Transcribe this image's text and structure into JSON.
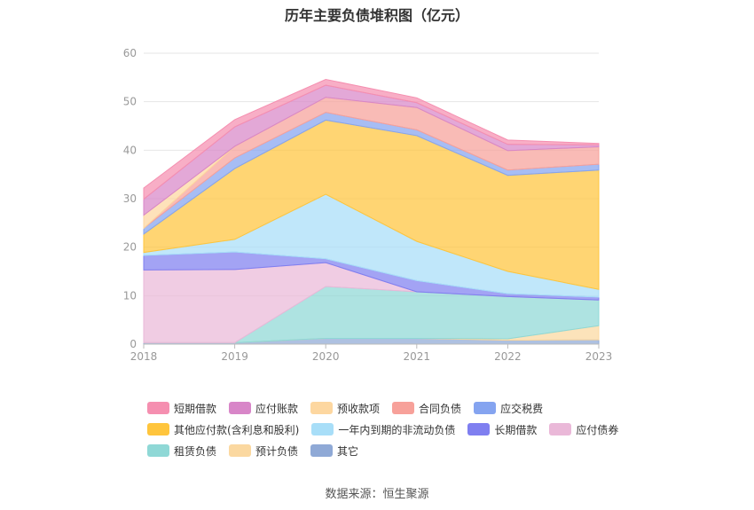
{
  "chart_data": {
    "type": "area",
    "stacked": true,
    "title": "历年主要负债堆积图（亿元）",
    "categories": [
      "2018",
      "2019",
      "2020",
      "2021",
      "2022",
      "2023"
    ],
    "ylim": [
      0,
      60
    ],
    "yticks": [
      0,
      10,
      20,
      30,
      40,
      50,
      60
    ],
    "grid": true,
    "legend_position": "bottom",
    "series": [
      {
        "name": "其它",
        "color": "#8fa9d6",
        "values": [
          0.3,
          0.3,
          1.2,
          1.2,
          0.8,
          0.9
        ]
      },
      {
        "name": "预计负债",
        "color": "#fbd8a0",
        "values": [
          0,
          0,
          0,
          0,
          0.3,
          2.9
        ]
      },
      {
        "name": "租赁负债",
        "color": "#8fd8d6",
        "values": [
          0,
          0,
          10.7,
          9.6,
          8.7,
          5.3
        ]
      },
      {
        "name": "应付债券",
        "color": "#eab8d8",
        "values": [
          15.0,
          15.1,
          4.9,
          0,
          0,
          0
        ]
      },
      {
        "name": "长期借款",
        "color": "#7f7ff0",
        "values": [
          3.0,
          3.6,
          0.8,
          2.3,
          0.6,
          0.6
        ]
      },
      {
        "name": "一年内到期的非流动负债",
        "color": "#a8def8",
        "values": [
          0.6,
          2.6,
          13.3,
          8.1,
          4.6,
          1.6
        ]
      },
      {
        "name": "其他应付款(含利息和股利)",
        "color": "#ffc53d",
        "values": [
          3.8,
          14.6,
          15.3,
          21.8,
          19.8,
          24.6
        ]
      },
      {
        "name": "应交税费",
        "color": "#85a4f0",
        "values": [
          1.2,
          2.2,
          1.6,
          1.2,
          1.1,
          1.2
        ]
      },
      {
        "name": "合同负债",
        "color": "#f7a19a",
        "values": [
          0,
          2.4,
          3.1,
          4.6,
          4.0,
          3.6
        ]
      },
      {
        "name": "预收款项",
        "color": "#fdd7a0",
        "values": [
          2.7,
          0,
          0,
          0,
          0,
          0
        ]
      },
      {
        "name": "应付账款",
        "color": "#d886c8",
        "values": [
          3.3,
          4.0,
          2.5,
          1.0,
          1.3,
          0.4
        ]
      },
      {
        "name": "短期借款",
        "color": "#f58fb0",
        "values": [
          2.3,
          1.5,
          1.2,
          1.0,
          0.9,
          0.3
        ]
      }
    ]
  },
  "legend_rows": [
    [
      "短期借款",
      "应付账款",
      "预收款项",
      "合同负债",
      "应交税费"
    ],
    [
      "其他应付款(含利息和股利)",
      "一年内到期的非流动负债",
      "长期借款",
      "应付债券"
    ],
    [
      "租赁负债",
      "预计负债",
      "其它"
    ]
  ],
  "source": "数据来源：恒生聚源"
}
